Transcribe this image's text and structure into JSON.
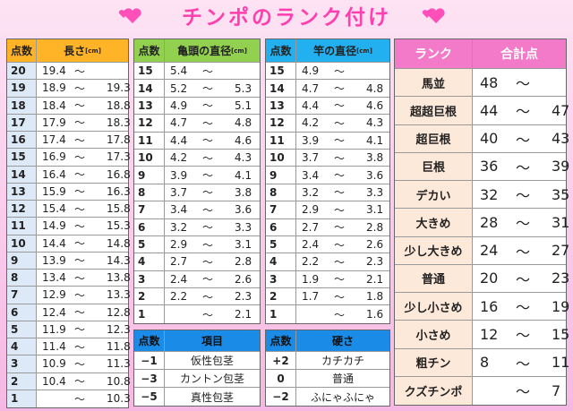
{
  "title": "チンポのランク付け",
  "tables": [
    {
      "headers": [
        "点数",
        "長さ"
      ],
      "unit": "[cm]",
      "rows": [
        [
          "20",
          "19.4",
          "～",
          null
        ],
        [
          "19",
          "18.9",
          "～",
          "19.3"
        ],
        [
          "18",
          "18.4",
          "～",
          "18.8"
        ],
        [
          "17",
          "17.9",
          "～",
          "18.3"
        ],
        [
          "16",
          "17.4",
          "～",
          "17.8"
        ],
        [
          "15",
          "16.9",
          "～",
          "17.3"
        ],
        [
          "14",
          "16.4",
          "～",
          "16.8"
        ],
        [
          "13",
          "15.9",
          "～",
          "16.3"
        ],
        [
          "12",
          "15.4",
          "～",
          "15.8"
        ],
        [
          "11",
          "14.9",
          "～",
          "15.3"
        ],
        [
          "10",
          "14.4",
          "～",
          "14.8"
        ],
        [
          "9",
          "13.9",
          "～",
          "14.3"
        ],
        [
          "8",
          "13.4",
          "～",
          "13.8"
        ],
        [
          "7",
          "12.9",
          "～",
          "13.3"
        ],
        [
          "6",
          "12.4",
          "～",
          "12.8"
        ],
        [
          "5",
          "11.9",
          "～",
          "12.3"
        ],
        [
          "4",
          "11.4",
          "～",
          "11.8"
        ],
        [
          "3",
          "10.9",
          "～",
          "11.3"
        ],
        [
          "2",
          "10.4",
          "～",
          "10.8"
        ],
        [
          "1",
          null,
          "～",
          "10.3"
        ]
      ]
    },
    {
      "headers": [
        "点数",
        "亀頭の直径"
      ],
      "unit": "[cm]",
      "rows": [
        [
          "15",
          "5.4",
          "～",
          null
        ],
        [
          "14",
          "5.2",
          "～",
          "5.3"
        ],
        [
          "13",
          "4.9",
          "～",
          "5.1"
        ],
        [
          "12",
          "4.7",
          "～",
          "4.8"
        ],
        [
          "11",
          "4.4",
          "～",
          "4.6"
        ],
        [
          "10",
          "4.2",
          "～",
          "4.3"
        ],
        [
          "9",
          "3.9",
          "～",
          "4.1"
        ],
        [
          "8",
          "3.7",
          "～",
          "3.8"
        ],
        [
          "7",
          "3.4",
          "～",
          "3.6"
        ],
        [
          "6",
          "3.2",
          "～",
          "3.3"
        ],
        [
          "5",
          "2.9",
          "～",
          "3.1"
        ],
        [
          "4",
          "2.7",
          "～",
          "2.8"
        ],
        [
          "3",
          "2.4",
          "～",
          "2.6"
        ],
        [
          "2",
          "2.2",
          "～",
          "2.3"
        ],
        [
          "1",
          null,
          "～",
          "2.1"
        ]
      ]
    },
    {
      "headers": [
        "点数",
        "竿の直径"
      ],
      "unit": "[cm]",
      "rows": [
        [
          "15",
          "4.9",
          "～",
          null
        ],
        [
          "14",
          "4.7",
          "～",
          "4.8"
        ],
        [
          "13",
          "4.4",
          "～",
          "4.6"
        ],
        [
          "12",
          "4.2",
          "～",
          "4.3"
        ],
        [
          "11",
          "3.9",
          "～",
          "4.1"
        ],
        [
          "10",
          "3.7",
          "～",
          "3.8"
        ],
        [
          "9",
          "3.4",
          "～",
          "3.6"
        ],
        [
          "8",
          "3.2",
          "～",
          "3.3"
        ],
        [
          "7",
          "2.9",
          "～",
          "3.1"
        ],
        [
          "6",
          "2.7",
          "～",
          "2.8"
        ],
        [
          "5",
          "2.4",
          "～",
          "2.6"
        ],
        [
          "4",
          "2.2",
          "～",
          "2.3"
        ],
        [
          "3",
          "1.9",
          "～",
          "2.1"
        ],
        [
          "2",
          "1.7",
          "～",
          "1.8"
        ],
        [
          "1",
          null,
          "～",
          "1.6"
        ]
      ]
    },
    {
      "headers": [
        "点数",
        "項目"
      ],
      "rows": [
        [
          "−1",
          "仮性包茎"
        ],
        [
          "−3",
          "カントン包茎"
        ],
        [
          "−5",
          "真性包茎"
        ]
      ]
    },
    {
      "headers": [
        "点数",
        "硬さ"
      ],
      "rows": [
        [
          "+2",
          "カチカチ"
        ],
        [
          "0",
          "普通"
        ],
        [
          "−2",
          "ふにゃふにゃ"
        ]
      ]
    },
    {
      "headers": [
        "ランク",
        "合計点"
      ],
      "rows": [
        [
          "馬並",
          "48",
          "～",
          null
        ],
        [
          "超超巨根",
          "44",
          "～",
          "47"
        ],
        [
          "超巨根",
          "40",
          "～",
          "43"
        ],
        [
          "巨根",
          "36",
          "～",
          "39"
        ],
        [
          "デカい",
          "32",
          "～",
          "35"
        ],
        [
          "大きめ",
          "28",
          "～",
          "31"
        ],
        [
          "少し大きめ",
          "24",
          "～",
          "27"
        ],
        [
          "普通",
          "20",
          "～",
          "23"
        ],
        [
          "少し小さめ",
          "16",
          "～",
          "19"
        ],
        [
          "小さめ",
          "12",
          "～",
          "15"
        ],
        [
          "粗チン",
          "8",
          "～",
          "11"
        ],
        [
          "クズチンポ",
          null,
          "～",
          "7"
        ]
      ]
    }
  ]
}
